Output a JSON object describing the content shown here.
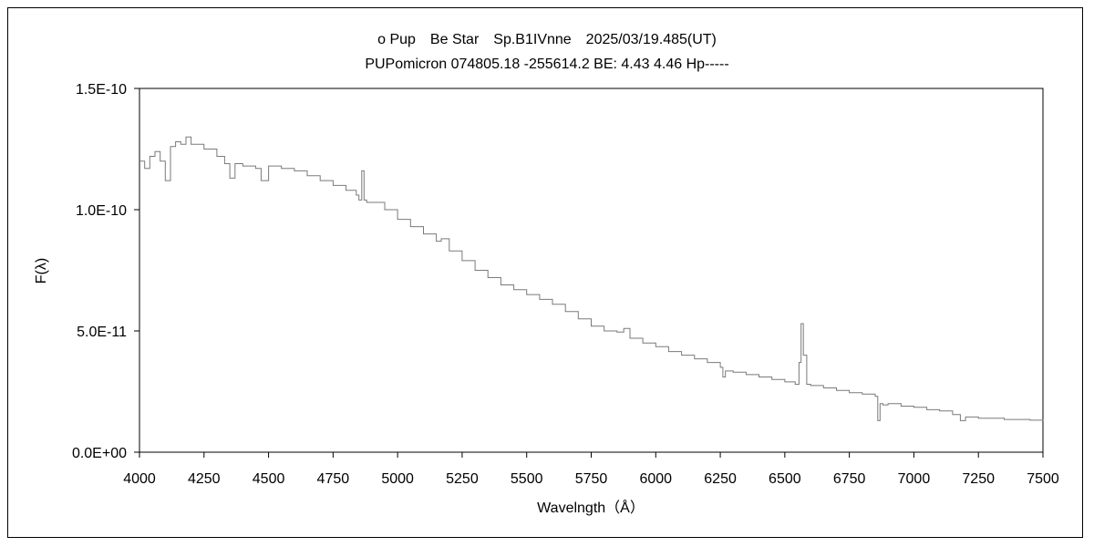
{
  "chart_data": {
    "type": "line",
    "title": "ο Pup　Be Star　Sp.B1IVnne　2025/03/19.485(UT)",
    "subtitle": "PUPomicron 074805.18 -255614.2 BE: 4.43 4.46 Hp-----",
    "xlabel": "Wavelngth（Å）",
    "ylabel": "F(λ)",
    "xlim": [
      4000,
      7500
    ],
    "ylim": [
      0,
      1.5e-10
    ],
    "x_ticks": [
      4000,
      4250,
      4500,
      4750,
      5000,
      5250,
      5500,
      5750,
      6000,
      6250,
      6500,
      6750,
      7000,
      7250,
      7500
    ],
    "x_tick_labels": [
      "4000",
      "4250",
      "4500",
      "4750",
      "5000",
      "5250",
      "5500",
      "5750",
      "6000",
      "6250",
      "6500",
      "6750",
      "7000",
      "7250",
      "7500"
    ],
    "y_ticks": [
      0,
      5e-11,
      1e-10,
      1.5e-10
    ],
    "y_tick_labels": [
      "0.0E+00",
      "5.0E-11",
      "1.0E-10",
      "1.5E-10"
    ],
    "grid": false,
    "legend": "none",
    "line_color": "#7a7a7a",
    "series": [
      {
        "x": [
          4000,
          4020,
          4040,
          4060,
          4080,
          4100,
          4120,
          4140,
          4160,
          4180,
          4200,
          4250,
          4300,
          4330,
          4350,
          4370,
          4400,
          4450,
          4471,
          4500,
          4550,
          4600,
          4650,
          4700,
          4750,
          4800,
          4840,
          4850,
          4861,
          4870,
          4880,
          4900,
          4950,
          5000,
          5050,
          5100,
          5150,
          5169,
          5200,
          5250,
          5300,
          5350,
          5400,
          5450,
          5500,
          5550,
          5600,
          5650,
          5700,
          5750,
          5800,
          5850,
          5876,
          5900,
          5950,
          6000,
          6050,
          6100,
          6150,
          6200,
          6250,
          6260,
          6270,
          6300,
          6350,
          6400,
          6450,
          6500,
          6540,
          6555,
          6563,
          6572,
          6585,
          6600,
          6650,
          6700,
          6750,
          6800,
          6850,
          6860,
          6869,
          6880,
          6900,
          6950,
          7000,
          7050,
          7100,
          7150,
          7180,
          7200,
          7250,
          7300,
          7350,
          7400,
          7450,
          7500
        ],
        "y": [
          1.2e-10,
          1.17e-10,
          1.22e-10,
          1.24e-10,
          1.2e-10,
          1.12e-10,
          1.26e-10,
          1.28e-10,
          1.27e-10,
          1.3e-10,
          1.27e-10,
          1.25e-10,
          1.22e-10,
          1.19e-10,
          1.13e-10,
          1.19e-10,
          1.18e-10,
          1.17e-10,
          1.12e-10,
          1.18e-10,
          1.17e-10,
          1.16e-10,
          1.14e-10,
          1.12e-10,
          1.1e-10,
          1.08e-10,
          1.06e-10,
          1.04e-10,
          1.16e-10,
          1.04e-10,
          1.03e-10,
          1.03e-10,
          1e-10,
          9.6e-11,
          9.3e-11,
          9e-11,
          8.7e-11,
          8.8e-11,
          8.3e-11,
          7.9e-11,
          7.5e-11,
          7.2e-11,
          6.9e-11,
          6.7e-11,
          6.5e-11,
          6.3e-11,
          6.1e-11,
          5.8e-11,
          5.5e-11,
          5.2e-11,
          5e-11,
          4.95e-11,
          5.1e-11,
          4.7e-11,
          4.5e-11,
          4.35e-11,
          4.15e-11,
          4e-11,
          3.85e-11,
          3.7e-11,
          3.5e-11,
          3.1e-11,
          3.35e-11,
          3.3e-11,
          3.2e-11,
          3.1e-11,
          3e-11,
          2.9e-11,
          2.8e-11,
          3.7e-11,
          5.3e-11,
          4e-11,
          2.8e-11,
          2.75e-11,
          2.65e-11,
          2.55e-11,
          2.45e-11,
          2.4e-11,
          2.3e-11,
          1.3e-11,
          2e-11,
          1.95e-11,
          2e-11,
          1.9e-11,
          1.85e-11,
          1.75e-11,
          1.7e-11,
          1.55e-11,
          1.3e-11,
          1.45e-11,
          1.4e-11,
          1.4e-11,
          1.35e-11,
          1.35e-11,
          1.32e-11,
          1.3e-11
        ]
      }
    ]
  }
}
